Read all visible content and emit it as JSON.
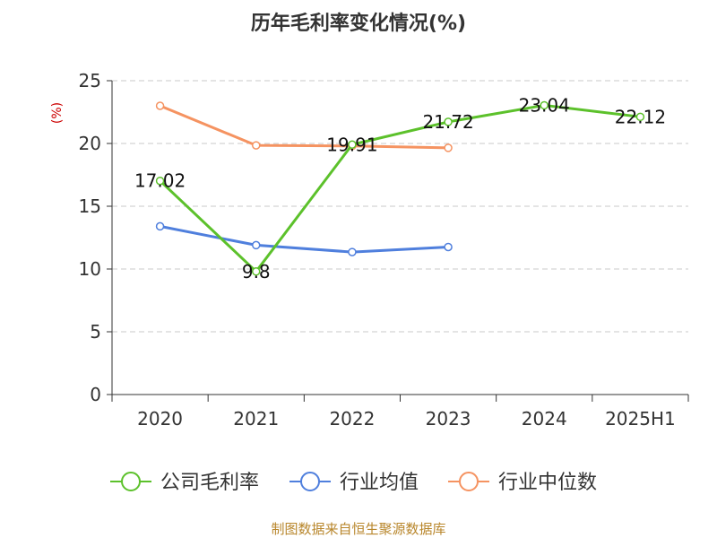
{
  "chart_data": {
    "type": "line",
    "title": "历年毛利率变化情况(%)",
    "ylabel": "(%)",
    "categories": [
      "2020",
      "2021",
      "2022",
      "2023",
      "2024",
      "2025H1"
    ],
    "ylim": [
      0,
      25
    ],
    "yticks": [
      0,
      5,
      10,
      15,
      20,
      25
    ],
    "grid": "horizontal-dashed",
    "legend_position": "bottom",
    "series": [
      {
        "name": "公司毛利率",
        "color": "#5cc12b",
        "values": [
          17.02,
          9.8,
          19.91,
          21.72,
          23.04,
          22.12
        ],
        "labels": [
          "17.02",
          "9.8",
          "19.91",
          "21.72",
          "23.04",
          "22.12"
        ]
      },
      {
        "name": "行业均值",
        "color": "#4f7fdd",
        "values": [
          13.4,
          11.9,
          11.35,
          11.75,
          null,
          null
        ]
      },
      {
        "name": "行业中位数",
        "color": "#f59361",
        "values": [
          23.0,
          19.85,
          19.8,
          19.65,
          null,
          null
        ]
      }
    ]
  },
  "source_text": "制图数据来自恒生聚源数据库"
}
